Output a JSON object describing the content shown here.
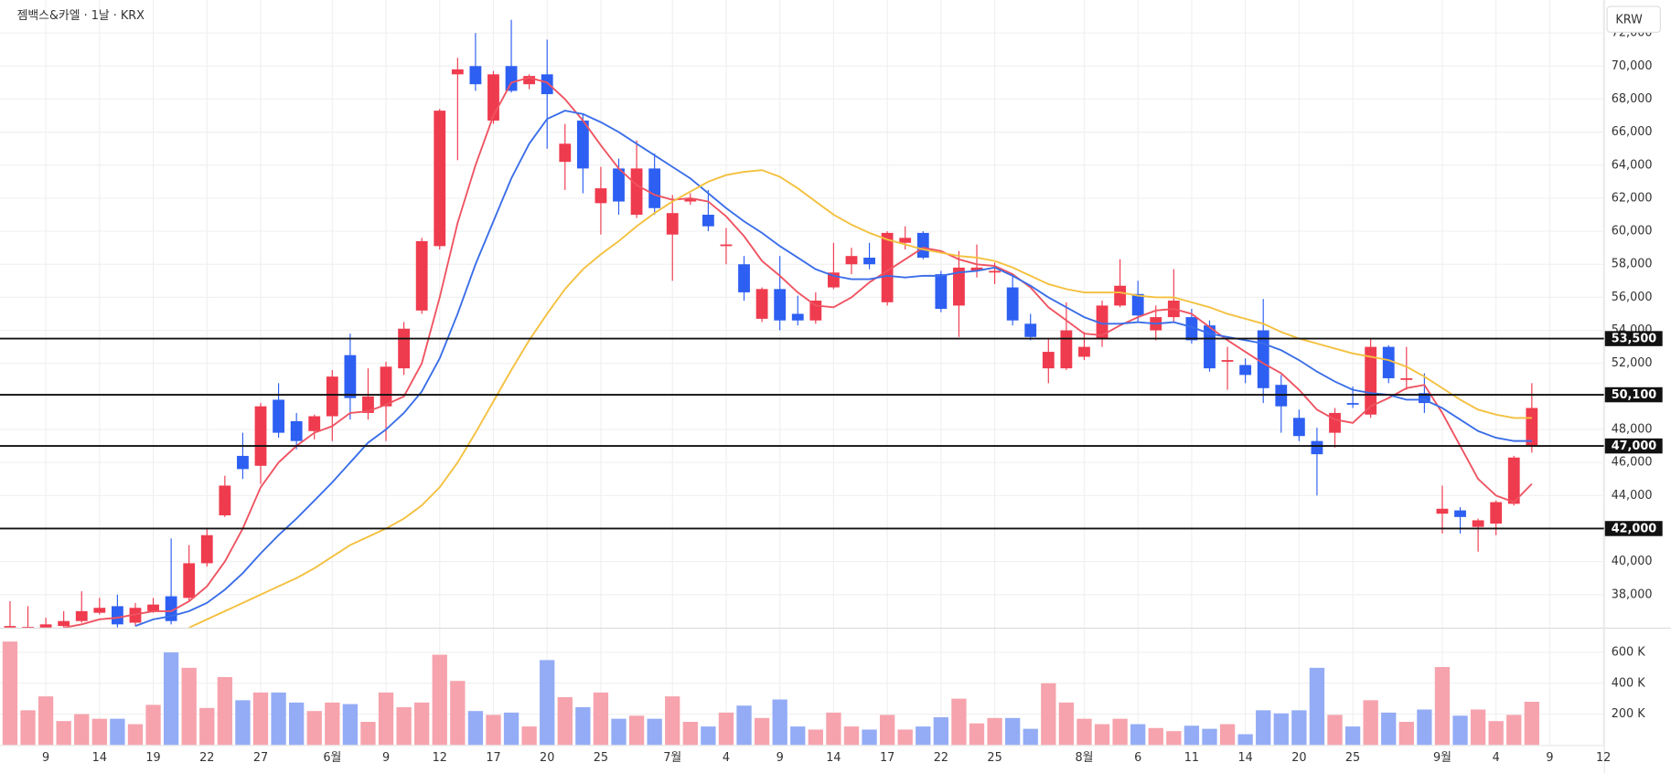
{
  "chart_data": {
    "type": "candlestick",
    "title": "젬백스&카엘 · 1날 · KRX",
    "currency": "KRW",
    "categories": [
      null,
      null,
      "9",
      null,
      null,
      "14",
      null,
      null,
      "19",
      null,
      null,
      "22",
      null,
      null,
      "27",
      null,
      null,
      null,
      "6월",
      null,
      null,
      "9",
      null,
      null,
      "12",
      null,
      null,
      "17",
      null,
      null,
      "20",
      null,
      null,
      "25",
      null,
      null,
      null,
      "7월",
      null,
      null,
      "4",
      null,
      null,
      "9",
      null,
      null,
      "14",
      null,
      null,
      "17",
      null,
      null,
      "22",
      null,
      null,
      "25",
      null,
      null,
      null,
      null,
      "8월",
      null,
      null,
      "6",
      null,
      null,
      "11",
      null,
      null,
      "14",
      null,
      null,
      "20",
      null,
      null,
      "25",
      null,
      null,
      null,
      null,
      "9월",
      null,
      null,
      "4",
      null,
      null,
      "9",
      null,
      null,
      "12"
    ],
    "open": [
      36000,
      36000,
      36000,
      36100,
      36400,
      36900,
      37300,
      36300,
      37000,
      37900,
      37800,
      39900,
      42800,
      46400,
      45800,
      49800,
      48500,
      47900,
      48800,
      52500,
      49000,
      49400,
      51700,
      55200,
      59100,
      69500,
      70000,
      66700,
      70000,
      68900,
      69500,
      64200,
      66700,
      61700,
      63800,
      61000,
      63800,
      59800,
      61800,
      61000,
      59100,
      58000,
      54700,
      56500,
      55000,
      54600,
      56600,
      58000,
      58400,
      55700,
      59300,
      59900,
      57400,
      55500,
      57600,
      57500,
      56600,
      54400,
      51700,
      51700,
      52400,
      53500,
      55500,
      56200,
      54000,
      54800,
      54800,
      54300,
      52100,
      51900,
      54000,
      50700,
      48700,
      47300,
      47800,
      49600,
      48900,
      53000,
      51000,
      50200,
      42900,
      43100,
      42100,
      42300,
      43500,
      47000,
      null,
      null,
      null,
      null
    ],
    "high": [
      37600,
      37300,
      36600,
      37000,
      38200,
      37800,
      38000,
      37500,
      37800,
      41400,
      41000,
      42000,
      45200,
      47800,
      49600,
      50800,
      49000,
      48900,
      51600,
      53800,
      51700,
      52100,
      54500,
      59600,
      67400,
      70500,
      72000,
      69700,
      72800,
      69500,
      71600,
      66500,
      67100,
      63900,
      64400,
      65500,
      64700,
      62200,
      62300,
      62500,
      60200,
      58500,
      56600,
      58500,
      56100,
      56300,
      59300,
      59000,
      59300,
      60000,
      60300,
      60000,
      57600,
      58800,
      59200,
      58100,
      57300,
      55000,
      53500,
      55700,
      53900,
      55800,
      58300,
      57000,
      55500,
      57700,
      55300,
      54600,
      53000,
      52300,
      55900,
      51300,
      49200,
      48100,
      49300,
      50600,
      53500,
      53100,
      53000,
      51400,
      44600,
      43300,
      42600,
      43700,
      46400,
      50800,
      null,
      null,
      null,
      null
    ],
    "low": [
      36000,
      35900,
      35900,
      36000,
      36300,
      36800,
      36000,
      36100,
      36900,
      36200,
      37600,
      39700,
      42700,
      45000,
      44700,
      47500,
      46800,
      47400,
      47300,
      48600,
      48600,
      47300,
      51300,
      55000,
      58900,
      64300,
      68500,
      66500,
      68400,
      68600,
      65000,
      62500,
      62300,
      59800,
      61000,
      60800,
      61000,
      57000,
      61600,
      60000,
      58000,
      55800,
      54500,
      54000,
      54300,
      54400,
      56500,
      57400,
      57700,
      55500,
      58900,
      58300,
      55100,
      53600,
      57200,
      56800,
      54300,
      53400,
      50800,
      51600,
      52200,
      53000,
      55400,
      54500,
      53400,
      54500,
      53200,
      51500,
      50400,
      50800,
      49600,
      47800,
      47300,
      44000,
      46900,
      49300,
      48700,
      50800,
      50400,
      49000,
      41700,
      41700,
      40600,
      41600,
      43400,
      46600,
      null,
      null,
      null,
      null
    ],
    "close": [
      36100,
      36050,
      36200,
      36400,
      37000,
      37200,
      36200,
      37200,
      37400,
      36400,
      39900,
      41600,
      44600,
      45600,
      49400,
      47800,
      47300,
      48800,
      51200,
      49900,
      50000,
      51800,
      54100,
      59400,
      67300,
      69800,
      68900,
      69500,
      68500,
      69400,
      68300,
      65300,
      63800,
      62600,
      61800,
      63800,
      61400,
      61100,
      62000,
      60300,
      59200,
      56300,
      56500,
      54600,
      54600,
      55800,
      57500,
      58500,
      58000,
      59900,
      59600,
      58400,
      55300,
      57800,
      57800,
      57600,
      54600,
      53600,
      52700,
      54000,
      53000,
      55500,
      56700,
      54900,
      54800,
      55800,
      53400,
      51700,
      52200,
      51300,
      50500,
      49400,
      47600,
      46500,
      49000,
      49500,
      53000,
      51100,
      51100,
      49600,
      43200,
      42700,
      42500,
      43600,
      46300,
      49300,
      null,
      null,
      null,
      null
    ],
    "volume": [
      670000,
      225000,
      315000,
      155000,
      200000,
      170000,
      170000,
      135000,
      260000,
      600000,
      500000,
      240000,
      440000,
      290000,
      340000,
      340000,
      275000,
      220000,
      275000,
      265000,
      150000,
      340000,
      245000,
      275000,
      585000,
      415000,
      220000,
      195000,
      210000,
      120000,
      550000,
      310000,
      245000,
      340000,
      170000,
      190000,
      170000,
      315000,
      150000,
      120000,
      210000,
      255000,
      175000,
      295000,
      120000,
      100000,
      210000,
      120000,
      100000,
      195000,
      100000,
      120000,
      180000,
      300000,
      140000,
      175000,
      175000,
      105000,
      400000,
      275000,
      170000,
      135000,
      170000,
      135000,
      110000,
      90000,
      125000,
      105000,
      135000,
      70000,
      225000,
      205000,
      225000,
      500000,
      195000,
      120000,
      290000,
      210000,
      150000,
      230000,
      505000,
      190000,
      230000,
      155000,
      195000,
      280000,
      null,
      null,
      null,
      null
    ],
    "series": [
      {
        "color": "#ef5361",
        "values": [
          null,
          null,
          null,
          36000,
          36200,
          36500,
          36600,
          36800,
          37000,
          37000,
          37600,
          38500,
          40000,
          42000,
          44500,
          46000,
          47000,
          47800,
          48200,
          49000,
          49100,
          49500,
          50000,
          52000,
          56000,
          60500,
          64000,
          67000,
          69000,
          69300,
          69000,
          68000,
          66700,
          65200,
          63800,
          62800,
          62200,
          61900,
          62000,
          61800,
          60900,
          59700,
          58200,
          57300,
          56300,
          55500,
          55400,
          56000,
          56900,
          57600,
          58300,
          59000,
          58800,
          58300,
          58000,
          57900,
          57400,
          56600,
          55400,
          54600,
          53800,
          53700,
          54300,
          54800,
          55200,
          55300,
          55000,
          54200,
          53400,
          52700,
          52000,
          51400,
          50400,
          49200,
          48600,
          48400,
          49400,
          49900,
          50500,
          50700,
          49000,
          47000,
          45000,
          44000,
          43600,
          44700,
          null,
          null,
          null,
          null
        ]
      },
      {
        "color": "#3a6ee8",
        "values": [
          null,
          null,
          null,
          null,
          null,
          null,
          null,
          36100,
          36500,
          36700,
          37000,
          37500,
          38300,
          39300,
          40500,
          41600,
          42600,
          43700,
          44800,
          46000,
          47200,
          48000,
          49000,
          50300,
          52300,
          55000,
          58000,
          60600,
          63200,
          65300,
          66800,
          67300,
          67100,
          66600,
          66000,
          65300,
          64600,
          63900,
          63200,
          62300,
          61400,
          60600,
          59900,
          59100,
          58400,
          57700,
          57300,
          57100,
          57100,
          57300,
          57200,
          57300,
          57300,
          57500,
          57600,
          57800,
          57300,
          56700,
          56000,
          55400,
          54800,
          54400,
          54400,
          54500,
          54400,
          54500,
          54200,
          53800,
          53600,
          53400,
          53200,
          52800,
          52200,
          51500,
          50900,
          50400,
          50200,
          50100,
          49800,
          49800,
          49300,
          48600,
          47900,
          47500,
          47300,
          47300,
          null,
          null,
          null,
          null
        ]
      },
      {
        "color": "#f4c03e",
        "values": [
          null,
          null,
          null,
          null,
          null,
          null,
          null,
          null,
          null,
          null,
          36000,
          36500,
          37000,
          37500,
          38000,
          38500,
          39000,
          39600,
          40300,
          41000,
          41500,
          42000,
          42600,
          43400,
          44500,
          46000,
          47800,
          49700,
          51600,
          53400,
          55000,
          56500,
          57700,
          58600,
          59400,
          60300,
          61100,
          61800,
          62400,
          63000,
          63400,
          63600,
          63700,
          63300,
          62600,
          61800,
          61000,
          60400,
          59900,
          59500,
          59200,
          58900,
          58700,
          58500,
          58400,
          58200,
          57800,
          57300,
          56800,
          56500,
          56300,
          56300,
          56300,
          56100,
          56000,
          56000,
          55700,
          55400,
          55000,
          54700,
          54400,
          53900,
          53500,
          53200,
          52900,
          52600,
          52400,
          52200,
          51800,
          51200,
          50500,
          49800,
          49200,
          48900,
          48700,
          48700,
          null,
          null,
          null,
          null
        ]
      }
    ],
    "up_color": "#ef3b4e",
    "down_color": "#2d5ff2",
    "up_volume_color": "#f6a3ad",
    "down_volume_color": "#94acf5",
    "ylim": [
      36000,
      74000
    ],
    "yticks": [
      {
        "value": 38000,
        "label": "38,000"
      },
      {
        "value": 40000,
        "label": "40,000"
      },
      {
        "value": 42000,
        "label": "42,000"
      },
      {
        "value": 44000,
        "label": "44,000"
      },
      {
        "value": 46000,
        "label": "46,000"
      },
      {
        "value": 48000,
        "label": "48,000"
      },
      {
        "value": 50000,
        "label": "50,000"
      },
      {
        "value": 52000,
        "label": "52,000"
      },
      {
        "value": 54000,
        "label": "54,000"
      },
      {
        "value": 56000,
        "label": "56,000"
      },
      {
        "value": 58000,
        "label": "58,000"
      },
      {
        "value": 60000,
        "label": "60,000"
      },
      {
        "value": 62000,
        "label": "62,000"
      },
      {
        "value": 64000,
        "label": "64,000"
      },
      {
        "value": 66000,
        "label": "66,000"
      },
      {
        "value": 68000,
        "label": "68,000"
      },
      {
        "value": 70000,
        "label": "70,000"
      },
      {
        "value": 72000,
        "label": "72,000"
      }
    ],
    "volume_ylim": [
      0,
      760000
    ],
    "volume_yticks": [
      {
        "value": 200000,
        "label": "200 K"
      },
      {
        "value": 400000,
        "label": "400 K"
      },
      {
        "value": 600000,
        "label": "600 K"
      }
    ],
    "hlines": [
      {
        "value": 53500,
        "label": "53,500"
      },
      {
        "value": 50100,
        "label": "50,100"
      },
      {
        "value": 47000,
        "label": "47,000"
      },
      {
        "value": 42000,
        "label": "42,000"
      }
    ],
    "grid": true
  }
}
